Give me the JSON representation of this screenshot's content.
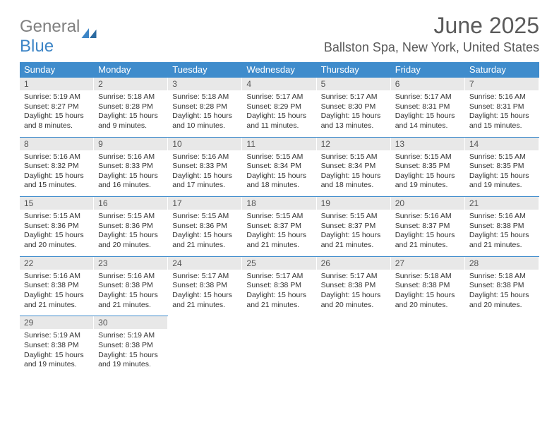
{
  "logo": {
    "text1": "General",
    "text2": "Blue"
  },
  "title": "June 2025",
  "location": "Ballston Spa, New York, United States",
  "colors": {
    "header_bg": "#3f8ccc",
    "header_fg": "#ffffff",
    "daynum_bg": "#e8e8e8",
    "border": "#3f8ccc",
    "logo_gray": "#808080",
    "logo_blue": "#3d85c6",
    "text": "#333333"
  },
  "weekdays": [
    "Sunday",
    "Monday",
    "Tuesday",
    "Wednesday",
    "Thursday",
    "Friday",
    "Saturday"
  ],
  "days": [
    {
      "n": "1",
      "sr": "Sunrise: 5:19 AM",
      "ss": "Sunset: 8:27 PM",
      "d1": "Daylight: 15 hours",
      "d2": "and 8 minutes."
    },
    {
      "n": "2",
      "sr": "Sunrise: 5:18 AM",
      "ss": "Sunset: 8:28 PM",
      "d1": "Daylight: 15 hours",
      "d2": "and 9 minutes."
    },
    {
      "n": "3",
      "sr": "Sunrise: 5:18 AM",
      "ss": "Sunset: 8:28 PM",
      "d1": "Daylight: 15 hours",
      "d2": "and 10 minutes."
    },
    {
      "n": "4",
      "sr": "Sunrise: 5:17 AM",
      "ss": "Sunset: 8:29 PM",
      "d1": "Daylight: 15 hours",
      "d2": "and 11 minutes."
    },
    {
      "n": "5",
      "sr": "Sunrise: 5:17 AM",
      "ss": "Sunset: 8:30 PM",
      "d1": "Daylight: 15 hours",
      "d2": "and 13 minutes."
    },
    {
      "n": "6",
      "sr": "Sunrise: 5:17 AM",
      "ss": "Sunset: 8:31 PM",
      "d1": "Daylight: 15 hours",
      "d2": "and 14 minutes."
    },
    {
      "n": "7",
      "sr": "Sunrise: 5:16 AM",
      "ss": "Sunset: 8:31 PM",
      "d1": "Daylight: 15 hours",
      "d2": "and 15 minutes."
    },
    {
      "n": "8",
      "sr": "Sunrise: 5:16 AM",
      "ss": "Sunset: 8:32 PM",
      "d1": "Daylight: 15 hours",
      "d2": "and 15 minutes."
    },
    {
      "n": "9",
      "sr": "Sunrise: 5:16 AM",
      "ss": "Sunset: 8:33 PM",
      "d1": "Daylight: 15 hours",
      "d2": "and 16 minutes."
    },
    {
      "n": "10",
      "sr": "Sunrise: 5:16 AM",
      "ss": "Sunset: 8:33 PM",
      "d1": "Daylight: 15 hours",
      "d2": "and 17 minutes."
    },
    {
      "n": "11",
      "sr": "Sunrise: 5:15 AM",
      "ss": "Sunset: 8:34 PM",
      "d1": "Daylight: 15 hours",
      "d2": "and 18 minutes."
    },
    {
      "n": "12",
      "sr": "Sunrise: 5:15 AM",
      "ss": "Sunset: 8:34 PM",
      "d1": "Daylight: 15 hours",
      "d2": "and 18 minutes."
    },
    {
      "n": "13",
      "sr": "Sunrise: 5:15 AM",
      "ss": "Sunset: 8:35 PM",
      "d1": "Daylight: 15 hours",
      "d2": "and 19 minutes."
    },
    {
      "n": "14",
      "sr": "Sunrise: 5:15 AM",
      "ss": "Sunset: 8:35 PM",
      "d1": "Daylight: 15 hours",
      "d2": "and 19 minutes."
    },
    {
      "n": "15",
      "sr": "Sunrise: 5:15 AM",
      "ss": "Sunset: 8:36 PM",
      "d1": "Daylight: 15 hours",
      "d2": "and 20 minutes."
    },
    {
      "n": "16",
      "sr": "Sunrise: 5:15 AM",
      "ss": "Sunset: 8:36 PM",
      "d1": "Daylight: 15 hours",
      "d2": "and 20 minutes."
    },
    {
      "n": "17",
      "sr": "Sunrise: 5:15 AM",
      "ss": "Sunset: 8:36 PM",
      "d1": "Daylight: 15 hours",
      "d2": "and 21 minutes."
    },
    {
      "n": "18",
      "sr": "Sunrise: 5:15 AM",
      "ss": "Sunset: 8:37 PM",
      "d1": "Daylight: 15 hours",
      "d2": "and 21 minutes."
    },
    {
      "n": "19",
      "sr": "Sunrise: 5:15 AM",
      "ss": "Sunset: 8:37 PM",
      "d1": "Daylight: 15 hours",
      "d2": "and 21 minutes."
    },
    {
      "n": "20",
      "sr": "Sunrise: 5:16 AM",
      "ss": "Sunset: 8:37 PM",
      "d1": "Daylight: 15 hours",
      "d2": "and 21 minutes."
    },
    {
      "n": "21",
      "sr": "Sunrise: 5:16 AM",
      "ss": "Sunset: 8:38 PM",
      "d1": "Daylight: 15 hours",
      "d2": "and 21 minutes."
    },
    {
      "n": "22",
      "sr": "Sunrise: 5:16 AM",
      "ss": "Sunset: 8:38 PM",
      "d1": "Daylight: 15 hours",
      "d2": "and 21 minutes."
    },
    {
      "n": "23",
      "sr": "Sunrise: 5:16 AM",
      "ss": "Sunset: 8:38 PM",
      "d1": "Daylight: 15 hours",
      "d2": "and 21 minutes."
    },
    {
      "n": "24",
      "sr": "Sunrise: 5:17 AM",
      "ss": "Sunset: 8:38 PM",
      "d1": "Daylight: 15 hours",
      "d2": "and 21 minutes."
    },
    {
      "n": "25",
      "sr": "Sunrise: 5:17 AM",
      "ss": "Sunset: 8:38 PM",
      "d1": "Daylight: 15 hours",
      "d2": "and 21 minutes."
    },
    {
      "n": "26",
      "sr": "Sunrise: 5:17 AM",
      "ss": "Sunset: 8:38 PM",
      "d1": "Daylight: 15 hours",
      "d2": "and 20 minutes."
    },
    {
      "n": "27",
      "sr": "Sunrise: 5:18 AM",
      "ss": "Sunset: 8:38 PM",
      "d1": "Daylight: 15 hours",
      "d2": "and 20 minutes."
    },
    {
      "n": "28",
      "sr": "Sunrise: 5:18 AM",
      "ss": "Sunset: 8:38 PM",
      "d1": "Daylight: 15 hours",
      "d2": "and 20 minutes."
    },
    {
      "n": "29",
      "sr": "Sunrise: 5:19 AM",
      "ss": "Sunset: 8:38 PM",
      "d1": "Daylight: 15 hours",
      "d2": "and 19 minutes."
    },
    {
      "n": "30",
      "sr": "Sunrise: 5:19 AM",
      "ss": "Sunset: 8:38 PM",
      "d1": "Daylight: 15 hours",
      "d2": "and 19 minutes."
    }
  ]
}
